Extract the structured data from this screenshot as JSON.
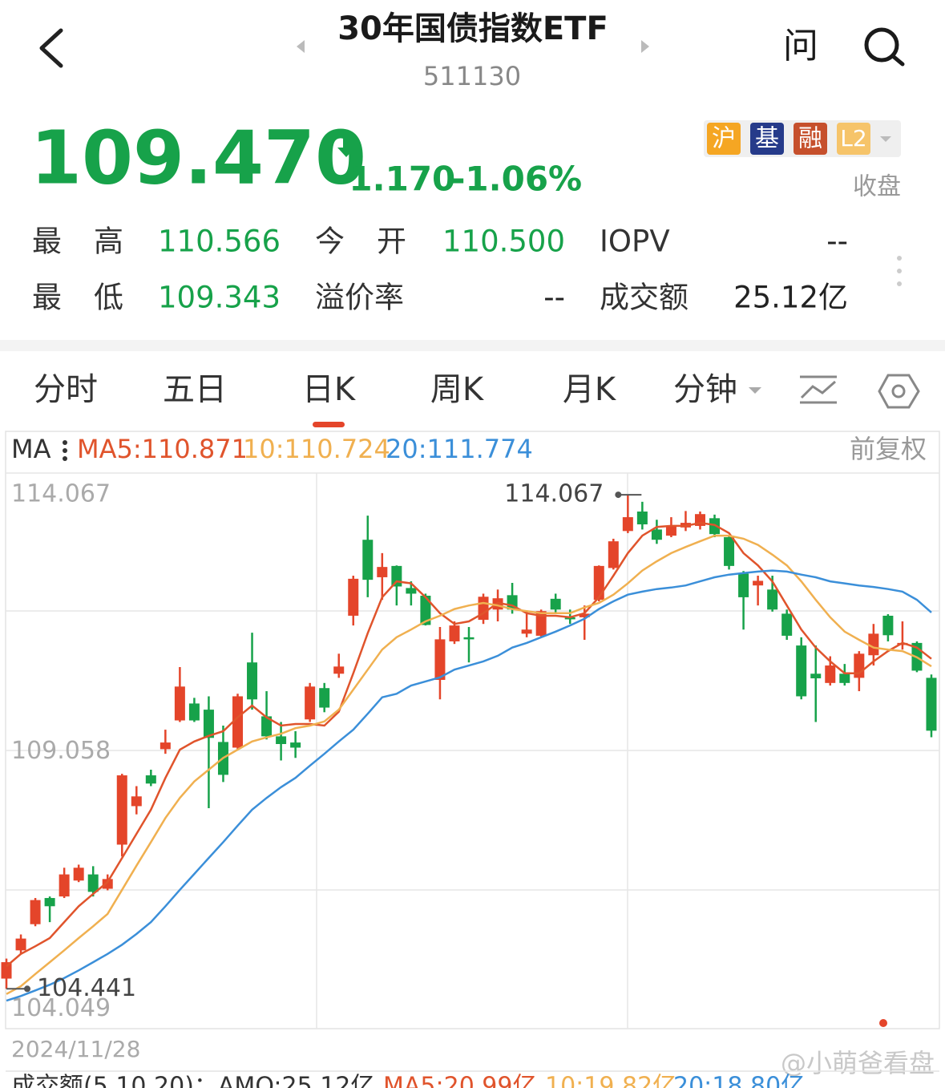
{
  "header": {
    "title": "30年国债指数ETF",
    "code": "511130",
    "ask": "问"
  },
  "quote": {
    "price": "109.470",
    "change": "-1.170",
    "change_pct": "-1.06%",
    "badges": [
      "沪",
      "基",
      "融",
      "L2"
    ],
    "status": "收盘"
  },
  "stats": [
    [
      "最高",
      "110.566",
      "今开",
      "110.500",
      "IOPV",
      "--"
    ],
    [
      "最低",
      "109.343",
      "溢价率",
      "--",
      "成交额",
      "25.12亿"
    ]
  ],
  "tabs": [
    "分时",
    "五日",
    "日K",
    "周K",
    "月K",
    "分钟"
  ],
  "active_tab": 2,
  "ma_bar": {
    "label": "MA",
    "adjust": "前复权"
  },
  "volume_legend": [
    "成交额(5,10,20)：AMO:25.12亿",
    "MA5:20.99亿",
    "10:19.82亿",
    "20:18.80亿"
  ],
  "watermark": "@小萌爸看盘",
  "chart_data": {
    "type": "candlestick",
    "categories": [
      "2024/11/28",
      null,
      null,
      null,
      null,
      null,
      null,
      null,
      null,
      null,
      null,
      null,
      null,
      null,
      null,
      null,
      null,
      null,
      null,
      null,
      null,
      null,
      null,
      null,
      null,
      null,
      null,
      null,
      null,
      null,
      null,
      null,
      null,
      null,
      null,
      null,
      null,
      null,
      null,
      null,
      null,
      null,
      null,
      null,
      null,
      null,
      null,
      null,
      null,
      null,
      null,
      null,
      null,
      null,
      null,
      null,
      null,
      null,
      null,
      null,
      null,
      null,
      null,
      null,
      null
    ],
    "open": [
      104.64,
      105.19,
      105.7,
      106.21,
      106.24,
      106.55,
      106.67,
      106.39,
      107.25,
      108.0,
      108.6,
      109.11,
      109.67,
      110.0,
      109.88,
      109.25,
      109.14,
      110.8,
      109.75,
      109.36,
      109.24,
      109.69,
      110.3,
      110.58,
      111.71,
      113.19,
      112.46,
      112.68,
      112.25,
      112.1,
      110.46,
      111.21,
      111.29,
      111.63,
      111.83,
      112.11,
      111.36,
      111.32,
      112.04,
      111.68,
      111.68,
      112.02,
      112.64,
      113.36,
      113.74,
      113.39,
      113.27,
      113.43,
      113.46,
      113.61,
      113.24,
      112.53,
      112.3,
      112.22,
      111.75,
      111.13,
      110.58,
      110.4,
      110.58,
      110.5,
      110.94,
      111.71,
      111.14,
      111.18,
      110.5
    ],
    "high": [
      105.03,
      105.5,
      106.21,
      106.24,
      106.8,
      106.86,
      106.83,
      106.67,
      108.63,
      108.39,
      108.71,
      109.49,
      110.71,
      110.11,
      110.14,
      109.57,
      110.19,
      111.38,
      110.24,
      109.64,
      109.46,
      110.4,
      110.4,
      110.97,
      112.49,
      113.66,
      112.93,
      112.69,
      112.38,
      112.14,
      111.49,
      111.6,
      111.49,
      112.14,
      112.22,
      112.35,
      111.8,
      111.83,
      112.14,
      111.83,
      111.91,
      112.69,
      113.21,
      114.067,
      113.93,
      113.58,
      113.63,
      113.75,
      113.74,
      113.68,
      113.27,
      112.58,
      112.49,
      112.49,
      111.83,
      111.29,
      111.13,
      110.92,
      110.77,
      111.02,
      111.55,
      111.74,
      111.6,
      111.21,
      110.566
    ],
    "low": [
      104.441,
      105.11,
      105.66,
      105.74,
      106.21,
      106.52,
      106.24,
      106.36,
      107.02,
      107.84,
      108.39,
      109.02,
      109.64,
      109.64,
      107.96,
      108.47,
      109.1,
      109.88,
      109.3,
      108.89,
      108.94,
      109.64,
      109.83,
      110.5,
      111.52,
      112.07,
      112.02,
      111.91,
      111.91,
      111.52,
      110.08,
      111.16,
      110.8,
      111.55,
      111.6,
      111.75,
      111.29,
      111.29,
      111.75,
      111.55,
      111.24,
      111.99,
      112.61,
      113.32,
      113.39,
      113.11,
      113.24,
      113.36,
      113.39,
      113.24,
      112.61,
      111.44,
      111.91,
      111.79,
      111.24,
      110.08,
      109.64,
      110.35,
      110.35,
      110.24,
      110.74,
      111.21,
      111.05,
      110.61,
      109.343
    ],
    "close": [
      104.96,
      105.42,
      106.17,
      106.05,
      106.67,
      106.8,
      106.33,
      106.58,
      108.6,
      108.19,
      108.44,
      109.24,
      110.33,
      109.67,
      109.33,
      108.61,
      110.14,
      110.08,
      109.36,
      109.21,
      109.14,
      110.33,
      109.92,
      110.72,
      112.43,
      112.41,
      112.66,
      112.28,
      112.14,
      111.53,
      111.25,
      111.52,
      111.25,
      112.08,
      112.05,
      111.83,
      111.44,
      111.8,
      111.83,
      111.64,
      111.75,
      112.68,
      113.16,
      113.63,
      113.49,
      113.19,
      113.46,
      113.52,
      113.69,
      113.3,
      112.68,
      112.07,
      112.39,
      111.83,
      111.32,
      110.14,
      110.49,
      110.74,
      110.4,
      110.97,
      111.36,
      111.33,
      111.18,
      110.64,
      109.47
    ],
    "up_color": "#e4452a",
    "down_color": "#17a24a",
    "lines": [
      {
        "name": "MA5:110.871",
        "color": "#e0542c",
        "values": [
          104.88,
          105.12,
          105.27,
          105.43,
          105.74,
          106.05,
          106.29,
          106.52,
          106.99,
          107.46,
          107.93,
          108.55,
          109.1,
          109.26,
          109.37,
          109.46,
          109.73,
          109.96,
          109.73,
          109.57,
          109.6,
          109.6,
          109.57,
          109.84,
          110.59,
          111.37,
          112.07,
          112.38,
          112.34,
          112.07,
          111.76,
          111.55,
          111.6,
          111.76,
          111.96,
          111.91,
          111.76,
          111.71,
          111.71,
          111.68,
          111.76,
          112.07,
          112.49,
          112.93,
          113.27,
          113.44,
          113.46,
          113.46,
          113.52,
          113.48,
          113.32,
          112.93,
          112.69,
          112.38,
          111.91,
          111.44,
          111.09,
          110.82,
          110.59,
          110.59,
          110.82,
          111.02,
          111.18,
          111.09,
          110.871
        ]
      },
      {
        "name": "10:110.724",
        "color": "#f0b050",
        "values": [
          104.34,
          104.49,
          104.73,
          104.96,
          105.19,
          105.43,
          105.66,
          105.9,
          106.37,
          106.84,
          107.3,
          107.77,
          108.16,
          108.48,
          108.71,
          108.94,
          109.1,
          109.26,
          109.34,
          109.41,
          109.52,
          109.57,
          109.65,
          109.88,
          110.27,
          110.66,
          111.05,
          111.29,
          111.44,
          111.6,
          111.71,
          111.84,
          111.91,
          111.96,
          111.91,
          111.84,
          111.8,
          111.76,
          111.76,
          111.76,
          111.87,
          111.96,
          112.12,
          112.34,
          112.59,
          112.77,
          112.93,
          113.05,
          113.16,
          113.27,
          113.27,
          113.21,
          113.09,
          112.9,
          112.69,
          112.38,
          112.02,
          111.68,
          111.4,
          111.24,
          111.09,
          111.05,
          111.02,
          110.9,
          110.724
        ]
      },
      {
        "name": "20:111.774",
        "color": "#3b8fd9",
        "values": [
          104.21,
          104.3,
          104.41,
          104.52,
          104.65,
          104.8,
          104.96,
          105.12,
          105.3,
          105.51,
          105.74,
          106.05,
          106.37,
          106.68,
          106.99,
          107.3,
          107.62,
          107.93,
          108.16,
          108.37,
          108.55,
          108.79,
          109.02,
          109.26,
          109.49,
          109.8,
          110.12,
          110.19,
          110.35,
          110.43,
          110.51,
          110.66,
          110.74,
          110.82,
          110.93,
          111.09,
          111.18,
          111.29,
          111.4,
          111.52,
          111.65,
          111.84,
          111.99,
          112.12,
          112.18,
          112.23,
          112.26,
          112.3,
          112.38,
          112.46,
          112.51,
          112.54,
          112.57,
          112.59,
          112.57,
          112.51,
          112.46,
          112.38,
          112.34,
          112.3,
          112.27,
          112.23,
          112.18,
          112.02,
          111.774
        ]
      }
    ],
    "ylim": [
      103.68,
      114.49
    ],
    "yticks": [
      104.049,
      109.058,
      114.067
    ]
  }
}
